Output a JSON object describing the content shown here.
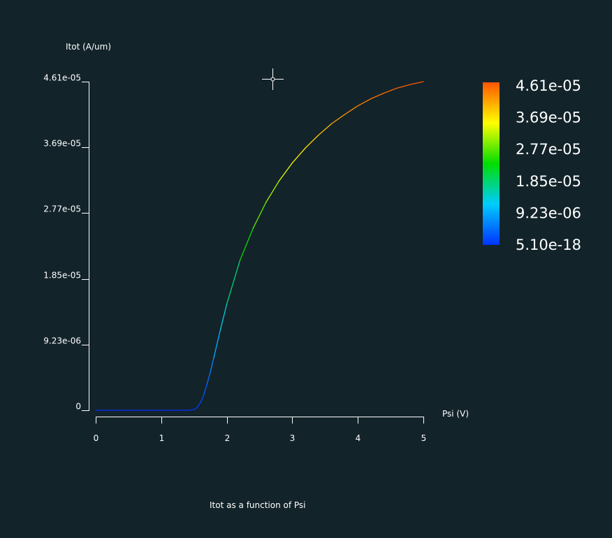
{
  "chart_data": {
    "type": "line",
    "title": "Itot as a function of Psi",
    "xlabel": "Psi (V)",
    "ylabel": "Itot (A/um)",
    "xlim": [
      0,
      5
    ],
    "ylim": [
      0,
      4.61e-05
    ],
    "x_ticks": [
      "0",
      "1",
      "2",
      "3",
      "4",
      "5"
    ],
    "y_ticks": [
      "0",
      "9.23e-06",
      "1.85e-05",
      "2.77e-05",
      "3.69e-05",
      "4.61e-05"
    ],
    "grid": false,
    "colorscale": {
      "labels": [
        "4.61e-05",
        "3.69e-05",
        "2.77e-05",
        "1.85e-05",
        "9.23e-06",
        "5.10e-18"
      ],
      "min": 5.1e-18,
      "max": 4.61e-05,
      "colors": [
        "#0033ff",
        "#00ccff",
        "#00dd00",
        "#ffff00",
        "#ff5500"
      ]
    },
    "series": [
      {
        "x": [
          0.0,
          0.5,
          1.0,
          1.4,
          1.5,
          1.55,
          1.6,
          1.65,
          1.7,
          1.75,
          1.8,
          1.9,
          2.0,
          2.2,
          2.4,
          2.6,
          2.8,
          3.0,
          3.2,
          3.4,
          3.6,
          3.8,
          4.0,
          4.2,
          4.4,
          4.6,
          4.8,
          5.0
        ],
        "y": [
          0,
          0,
          0,
          0,
          1e-07,
          4e-07,
          1.1e-06,
          2.2e-06,
          3.7e-06,
          5.4e-06,
          7.3e-06,
          1.12e-05,
          1.49e-05,
          2.1e-05,
          2.55e-05,
          2.92e-05,
          3.22e-05,
          3.47e-05,
          3.68e-05,
          3.86e-05,
          4.02e-05,
          4.15e-05,
          4.27e-05,
          4.37e-05,
          4.45e-05,
          4.52e-05,
          4.57e-05,
          4.61e-05
        ]
      }
    ]
  }
}
